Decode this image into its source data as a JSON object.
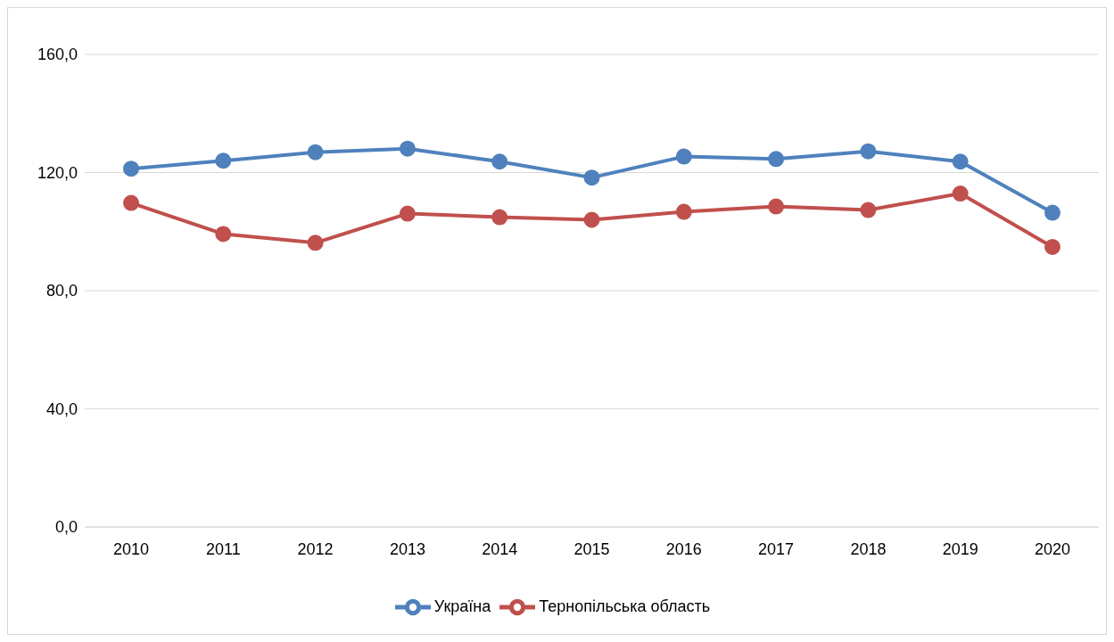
{
  "chart_data": {
    "type": "line",
    "categories": [
      "2010",
      "2011",
      "2012",
      "2013",
      "2014",
      "2015",
      "2016",
      "2017",
      "2018",
      "2019",
      "2020"
    ],
    "series": [
      {
        "name": "Україна",
        "color": "#4f81bd",
        "values": [
          121.3,
          124.0,
          126.9,
          128.1,
          123.7,
          118.3,
          125.4,
          124.6,
          127.2,
          123.7,
          106.4
        ]
      },
      {
        "name": "Тернопільська область",
        "color": "#c0504d",
        "values": [
          109.7,
          99.2,
          96.2,
          106.1,
          104.9,
          104.0,
          106.7,
          108.5,
          107.3,
          112.9,
          94.8
        ]
      }
    ],
    "ylim": [
      0,
      160
    ],
    "yticks": [
      {
        "value": 0,
        "label": "0,0"
      },
      {
        "value": 40,
        "label": "40,0"
      },
      {
        "value": 80,
        "label": "80,0"
      },
      {
        "value": 120,
        "label": "120,0"
      },
      {
        "value": 160,
        "label": "160,0"
      }
    ],
    "grid": "y",
    "legend": "bottom",
    "marker": "circle",
    "line_style": "solid"
  }
}
